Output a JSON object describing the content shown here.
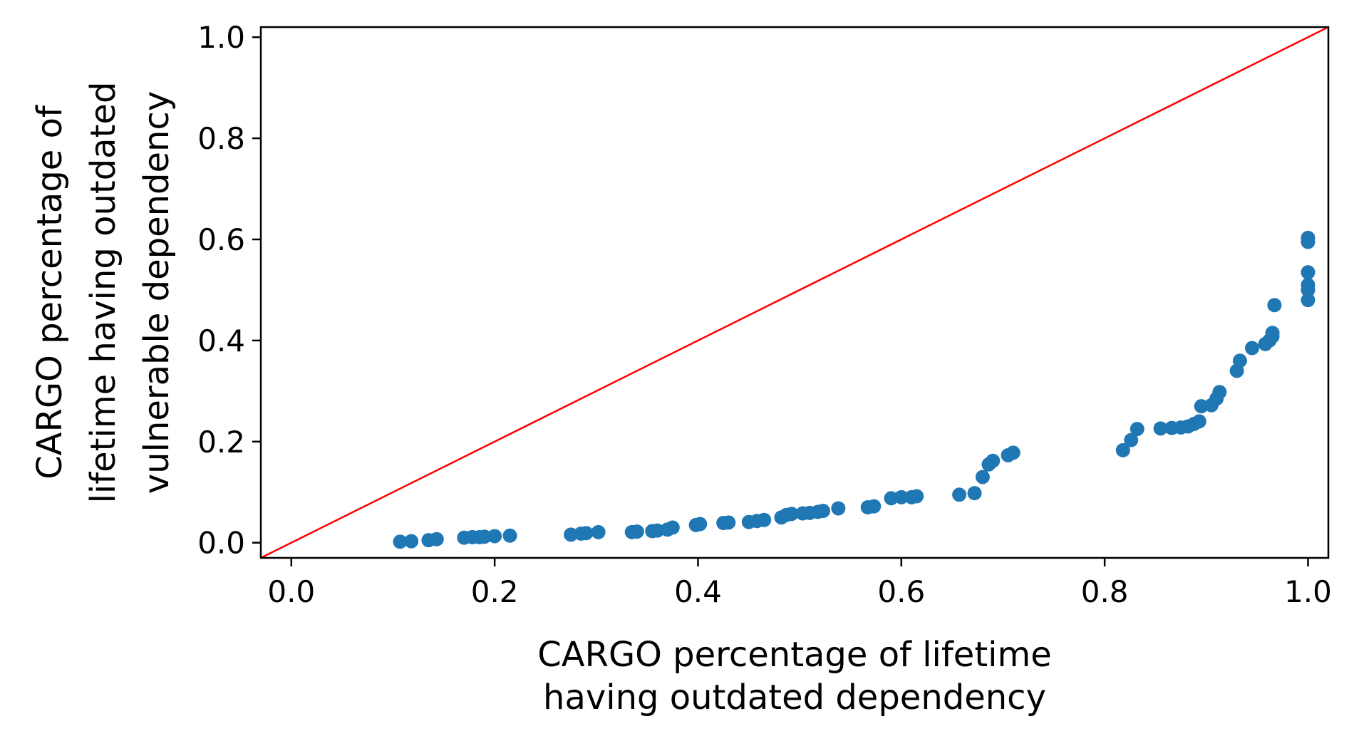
{
  "chart_data": {
    "type": "scatter",
    "title": "",
    "xlabel": [
      "CARGO percentage of lifetime",
      "having outdated dependency"
    ],
    "ylabel": [
      "CARGO percentage of",
      "lifetime having outdated",
      "vulnerable dependency"
    ],
    "xlim": [
      -0.03,
      1.02
    ],
    "ylim": [
      -0.03,
      1.02
    ],
    "xticks": [
      0.0,
      0.2,
      0.4,
      0.6,
      0.8,
      1.0
    ],
    "xtick_labels": [
      "0.0",
      "0.2",
      "0.4",
      "0.6",
      "0.8",
      "1.0"
    ],
    "yticks": [
      0.0,
      0.2,
      0.4,
      0.6,
      0.8,
      1.0
    ],
    "ytick_labels": [
      "0.0",
      "0.2",
      "0.4",
      "0.6",
      "0.8",
      "1.0"
    ],
    "grid": false,
    "colors": {
      "points": "#1f77b4",
      "reference_line": "#ff0000"
    },
    "reference_line": {
      "x": [
        -0.03,
        1.02
      ],
      "y": [
        -0.03,
        1.02
      ]
    },
    "series": [
      {
        "x": [
          0.107,
          0.118,
          0.135,
          0.143,
          0.17,
          0.178,
          0.185,
          0.19,
          0.2,
          0.215,
          0.275,
          0.285,
          0.29,
          0.302,
          0.335,
          0.34,
          0.355,
          0.36,
          0.37,
          0.375,
          0.398,
          0.402,
          0.425,
          0.43,
          0.45,
          0.458,
          0.465,
          0.482,
          0.487,
          0.492,
          0.503,
          0.51,
          0.518,
          0.523,
          0.538,
          0.567,
          0.573,
          0.59,
          0.6,
          0.61,
          0.615,
          0.657,
          0.672,
          0.68,
          0.686,
          0.69,
          0.705,
          0.71,
          0.818,
          0.826,
          0.832,
          0.855,
          0.866,
          0.875,
          0.882,
          0.888,
          0.893,
          0.895,
          0.905,
          0.91,
          0.913,
          0.93,
          0.933,
          0.945,
          0.958,
          0.962,
          0.965,
          0.965,
          0.967,
          1.0,
          1.0,
          1.0,
          1.0,
          1.0,
          1.0
        ],
        "y": [
          0.002,
          0.003,
          0.005,
          0.007,
          0.01,
          0.011,
          0.011,
          0.012,
          0.013,
          0.014,
          0.016,
          0.018,
          0.019,
          0.021,
          0.021,
          0.022,
          0.023,
          0.024,
          0.026,
          0.03,
          0.035,
          0.037,
          0.039,
          0.04,
          0.041,
          0.043,
          0.045,
          0.05,
          0.055,
          0.057,
          0.058,
          0.059,
          0.061,
          0.063,
          0.068,
          0.07,
          0.072,
          0.088,
          0.09,
          0.09,
          0.092,
          0.095,
          0.098,
          0.13,
          0.155,
          0.162,
          0.173,
          0.178,
          0.183,
          0.203,
          0.225,
          0.226,
          0.227,
          0.228,
          0.23,
          0.235,
          0.24,
          0.27,
          0.272,
          0.285,
          0.298,
          0.34,
          0.36,
          0.385,
          0.393,
          0.4,
          0.408,
          0.415,
          0.47,
          0.48,
          0.5,
          0.51,
          0.535,
          0.595,
          0.603
        ]
      }
    ]
  }
}
